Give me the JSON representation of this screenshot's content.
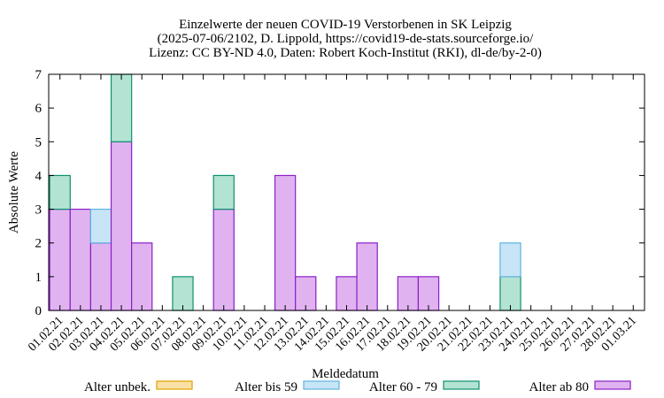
{
  "chart_data": {
    "type": "bar",
    "stacked": true,
    "title_lines": [
      "Einzelwerte der neuen COVID-19 Verstorbenen in SK Leipzig",
      "(2025-07-06/2102, D. Lippold, https://covid19-de-stats.sourceforge.io/",
      "Lizenz: CC BY-ND 4.0, Daten: Robert Koch-Institut (RKI), dl-de/by-2-0)"
    ],
    "xlabel": "Meldedatum",
    "ylabel": "Absolute Werte",
    "ylim": [
      0,
      7
    ],
    "yticks": [
      0,
      1,
      2,
      3,
      4,
      5,
      6,
      7
    ],
    "grid": false,
    "legend_position": "bottom",
    "categories": [
      "01.02.21",
      "02.02.21",
      "03.02.21",
      "04.02.21",
      "05.02.21",
      "06.02.21",
      "07.02.21",
      "08.02.21",
      "09.02.21",
      "10.02.21",
      "11.02.21",
      "12.02.21",
      "13.02.21",
      "14.02.21",
      "15.02.21",
      "16.02.21",
      "17.02.21",
      "18.02.21",
      "19.02.21",
      "20.02.21",
      "21.02.21",
      "22.02.21",
      "23.02.21",
      "24.02.21",
      "25.02.21",
      "26.02.21",
      "27.02.21",
      "28.02.21",
      "01.03.21"
    ],
    "series": [
      {
        "name": "Alter ab 80",
        "fill": "#e0b3f0",
        "stroke": "#8b1fc7",
        "values": [
          3,
          3,
          2,
          5,
          2,
          0,
          0,
          0,
          3,
          0,
          0,
          4,
          1,
          0,
          1,
          2,
          0,
          1,
          1,
          0,
          0,
          0,
          0,
          0,
          0,
          0,
          0,
          0,
          0
        ]
      },
      {
        "name": "Alter 60 - 79",
        "fill": "#b3e3d3",
        "stroke": "#0e9070",
        "values": [
          1,
          0,
          0,
          2,
          0,
          0,
          1,
          0,
          1,
          0,
          0,
          0,
          0,
          0,
          0,
          0,
          0,
          0,
          0,
          0,
          0,
          0,
          1,
          0,
          0,
          0,
          0,
          0,
          0
        ]
      },
      {
        "name": "Alter bis 59",
        "fill": "#c8e5f7",
        "stroke": "#5fb3e0",
        "values": [
          0,
          0,
          1,
          0,
          0,
          0,
          0,
          0,
          0,
          0,
          0,
          0,
          0,
          0,
          0,
          0,
          0,
          0,
          0,
          0,
          0,
          0,
          1,
          0,
          0,
          0,
          0,
          0,
          0
        ]
      },
      {
        "name": "Alter unbek.",
        "fill": "#fbe1a6",
        "stroke": "#e0a200",
        "values": [
          0,
          0,
          0,
          0,
          0,
          0,
          0,
          0,
          0,
          0,
          0,
          0,
          0,
          0,
          0,
          0,
          0,
          0,
          0,
          0,
          0,
          0,
          0,
          0,
          0,
          0,
          0,
          0,
          0
        ]
      }
    ],
    "legend_order": [
      "Alter unbek.",
      "Alter bis 59",
      "Alter 60 - 79",
      "Alter ab 80"
    ]
  }
}
